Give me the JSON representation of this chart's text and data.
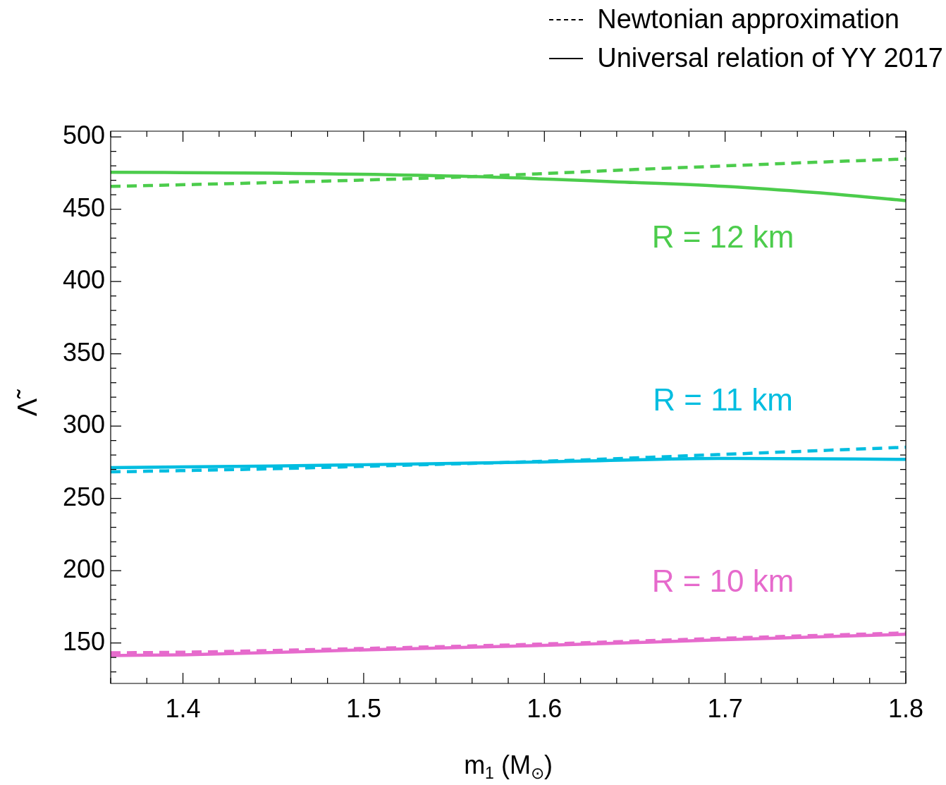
{
  "chart_data": {
    "type": "line",
    "xlabel": "m$_{1}$ (M$_{⊙}$)",
    "ylabel": "Λ̃",
    "xlim": [
      1.36,
      1.8
    ],
    "ylim": [
      122,
      504
    ],
    "xticks": [
      {
        "value": 1.36,
        "label": null
      },
      {
        "value": 1.38,
        "label": null
      },
      1.4,
      {
        "value": 1.42,
        "label": null
      },
      {
        "value": 1.44,
        "label": null
      },
      {
        "value": 1.46,
        "label": null
      },
      {
        "value": 1.48,
        "label": null
      },
      1.5,
      {
        "value": 1.52,
        "label": null
      },
      {
        "value": 1.54,
        "label": null
      },
      {
        "value": 1.56,
        "label": null
      },
      {
        "value": 1.58,
        "label": null
      },
      1.6,
      {
        "value": 1.62,
        "label": null
      },
      {
        "value": 1.64,
        "label": null
      },
      {
        "value": 1.66,
        "label": null
      },
      {
        "value": 1.68,
        "label": null
      },
      1.7,
      {
        "value": 1.72,
        "label": null
      },
      {
        "value": 1.74,
        "label": null
      },
      {
        "value": 1.76,
        "label": null
      },
      {
        "value": 1.78,
        "label": null
      },
      1.8
    ],
    "yticks": [
      {
        "value": 130,
        "label": null
      },
      {
        "value": 140,
        "label": null
      },
      150,
      {
        "value": 160,
        "label": null
      },
      {
        "value": 170,
        "label": null
      },
      {
        "value": 180,
        "label": null
      },
      {
        "value": 190,
        "label": null
      },
      200,
      {
        "value": 210,
        "label": null
      },
      {
        "value": 220,
        "label": null
      },
      {
        "value": 230,
        "label": null
      },
      {
        "value": 240,
        "label": null
      },
      250,
      {
        "value": 260,
        "label": null
      },
      {
        "value": 270,
        "label": null
      },
      {
        "value": 280,
        "label": null
      },
      {
        "value": 290,
        "label": null
      },
      300,
      {
        "value": 310,
        "label": null
      },
      {
        "value": 320,
        "label": null
      },
      {
        "value": 330,
        "label": null
      },
      {
        "value": 340,
        "label": null
      },
      350,
      {
        "value": 360,
        "label": null
      },
      {
        "value": 370,
        "label": null
      },
      {
        "value": 380,
        "label": null
      },
      {
        "value": 390,
        "label": null
      },
      400,
      {
        "value": 410,
        "label": null
      },
      {
        "value": 420,
        "label": null
      },
      {
        "value": 430,
        "label": null
      },
      {
        "value": 440,
        "label": null
      },
      450,
      {
        "value": 460,
        "label": null
      },
      {
        "value": 470,
        "label": null
      },
      {
        "value": 480,
        "label": null
      },
      {
        "value": 490,
        "label": null
      },
      500
    ],
    "grid": false,
    "marker": "none",
    "series": [
      {
        "name": "R = 12 km",
        "color": "#4ccc4c",
        "line_style": "solid",
        "x": [
          1.36,
          1.45,
          1.56,
          1.65,
          1.7,
          1.75,
          1.8
        ],
        "values": [
          475.6,
          475.0,
          472.6,
          468.5,
          465.8,
          461.5,
          456
        ]
      },
      {
        "color": "#4ccc4c",
        "line_style": "dashed",
        "x": [
          1.36,
          1.45,
          1.56,
          1.65,
          1.7,
          1.75,
          1.8
        ],
        "values": [
          465.8,
          468.5,
          472.6,
          477.5,
          480,
          482.5,
          484.8
        ]
      },
      {
        "name": "R = 11 km",
        "color": "#00bde0",
        "line_style": "solid",
        "x": [
          1.36,
          1.45,
          1.5,
          1.6,
          1.7,
          1.8
        ],
        "values": [
          271.3,
          272.4,
          273.3,
          275.2,
          277.6,
          277
        ]
      },
      {
        "color": "#00bde0",
        "line_style": "dashed",
        "x": [
          1.36,
          1.45,
          1.5,
          1.6,
          1.7,
          1.8
        ],
        "values": [
          268.3,
          270.5,
          272.2,
          275.7,
          280.5,
          285.4
        ]
      },
      {
        "name": "R = 10 km",
        "color": "#e66acc",
        "line_style": "solid",
        "x": [
          1.36,
          1.4,
          1.5,
          1.6,
          1.7,
          1.8
        ],
        "values": [
          141.3,
          141.8,
          145.2,
          148.3,
          152.3,
          156
        ]
      },
      {
        "color": "#e66acc",
        "line_style": "dashed",
        "x": [
          1.36,
          1.4,
          1.5,
          1.6,
          1.7,
          1.8
        ],
        "values": [
          143.2,
          143.6,
          146.2,
          149.3,
          153.3,
          157
        ]
      }
    ],
    "annotations": [
      "Newtonian approximation",
      "Universal relation of YY 2017"
    ]
  }
}
